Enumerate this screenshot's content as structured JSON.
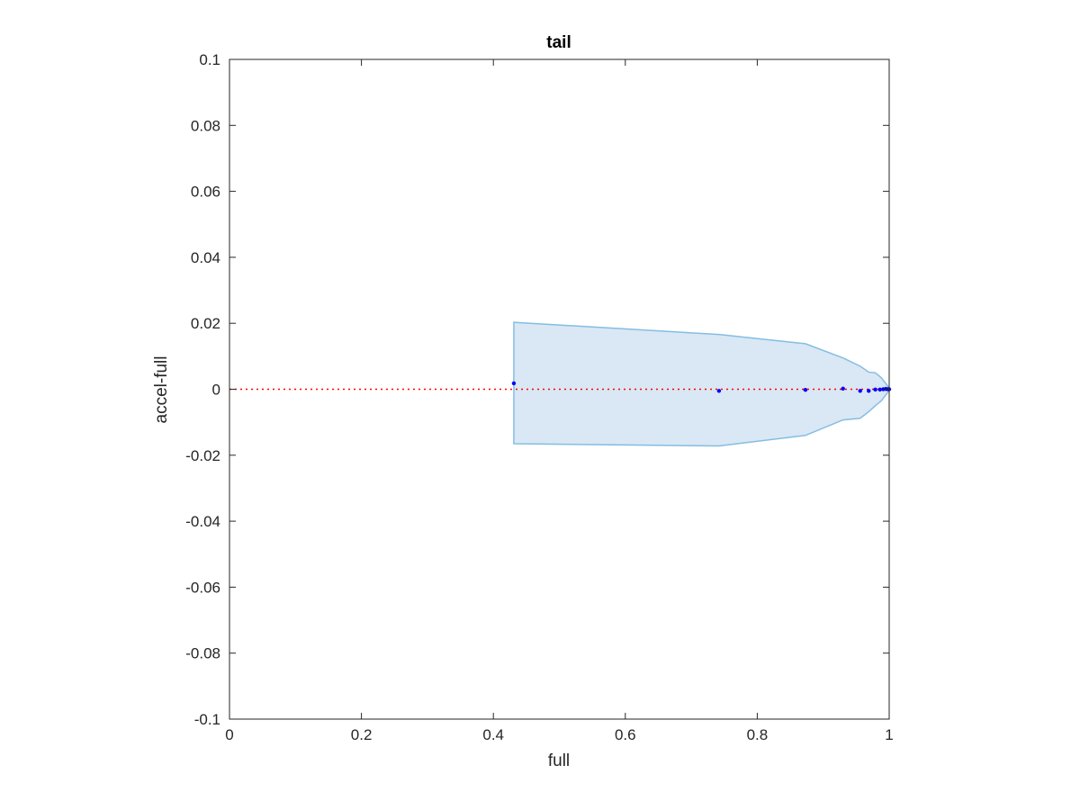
{
  "chart_data": {
    "type": "scatter",
    "title": "tail",
    "xlabel": "full",
    "ylabel": "accel-full",
    "xlim": [
      0,
      1
    ],
    "ylim": [
      -0.1,
      0.1
    ],
    "x_ticks": [
      0,
      0.2,
      0.4,
      0.6,
      0.8,
      1
    ],
    "x_tick_labels": [
      "0",
      "0.2",
      "0.4",
      "0.6",
      "0.8",
      "1"
    ],
    "y_ticks": [
      0.1,
      0.08,
      0.06,
      0.04,
      0.02,
      0,
      -0.02,
      -0.04,
      -0.06,
      -0.08,
      -0.1
    ],
    "y_tick_labels": [
      "0.1",
      "0.08",
      "0.06",
      "0.04",
      "0.02",
      "0",
      "-0.02",
      "-0.04",
      "-0.06",
      "-0.08",
      "-0.1"
    ],
    "grid": false,
    "reference_line": {
      "y": 0,
      "style": "dotted",
      "color": "#ff0000"
    },
    "band": {
      "fill": "#d9e8f4",
      "edge": "#85bde2",
      "upper": [
        [
          0.431,
          0.0203
        ],
        [
          0.742,
          0.0166
        ],
        [
          0.873,
          0.0138
        ],
        [
          0.93,
          0.0095
        ],
        [
          0.956,
          0.007
        ],
        [
          0.969,
          0.0052
        ],
        [
          0.979,
          0.005
        ],
        [
          0.988,
          0.0035
        ],
        [
          0.993,
          0.0022
        ],
        [
          0.997,
          0.0012
        ],
        [
          1.0,
          0.0004
        ]
      ],
      "lower": [
        [
          0.431,
          -0.0165
        ],
        [
          0.742,
          -0.0172
        ],
        [
          0.873,
          -0.014
        ],
        [
          0.93,
          -0.0093
        ],
        [
          0.956,
          -0.0088
        ],
        [
          0.969,
          -0.0068
        ],
        [
          0.979,
          -0.005
        ],
        [
          0.988,
          -0.0035
        ],
        [
          0.993,
          -0.0022
        ],
        [
          0.997,
          -0.0012
        ],
        [
          1.0,
          -0.0004
        ]
      ]
    },
    "series": [
      {
        "color": "#0000ff",
        "x": [
          0.431,
          0.742,
          0.873,
          0.93,
          0.956,
          0.969,
          0.979,
          0.986,
          0.991,
          0.995,
          0.998,
          1.0
        ],
        "y": [
          0.0018,
          -0.0005,
          -0.0002,
          0.0002,
          -0.0005,
          -0.0005,
          -0.0001,
          -0.0001,
          0.0,
          0.0001,
          0.0,
          0.0
        ]
      }
    ]
  }
}
